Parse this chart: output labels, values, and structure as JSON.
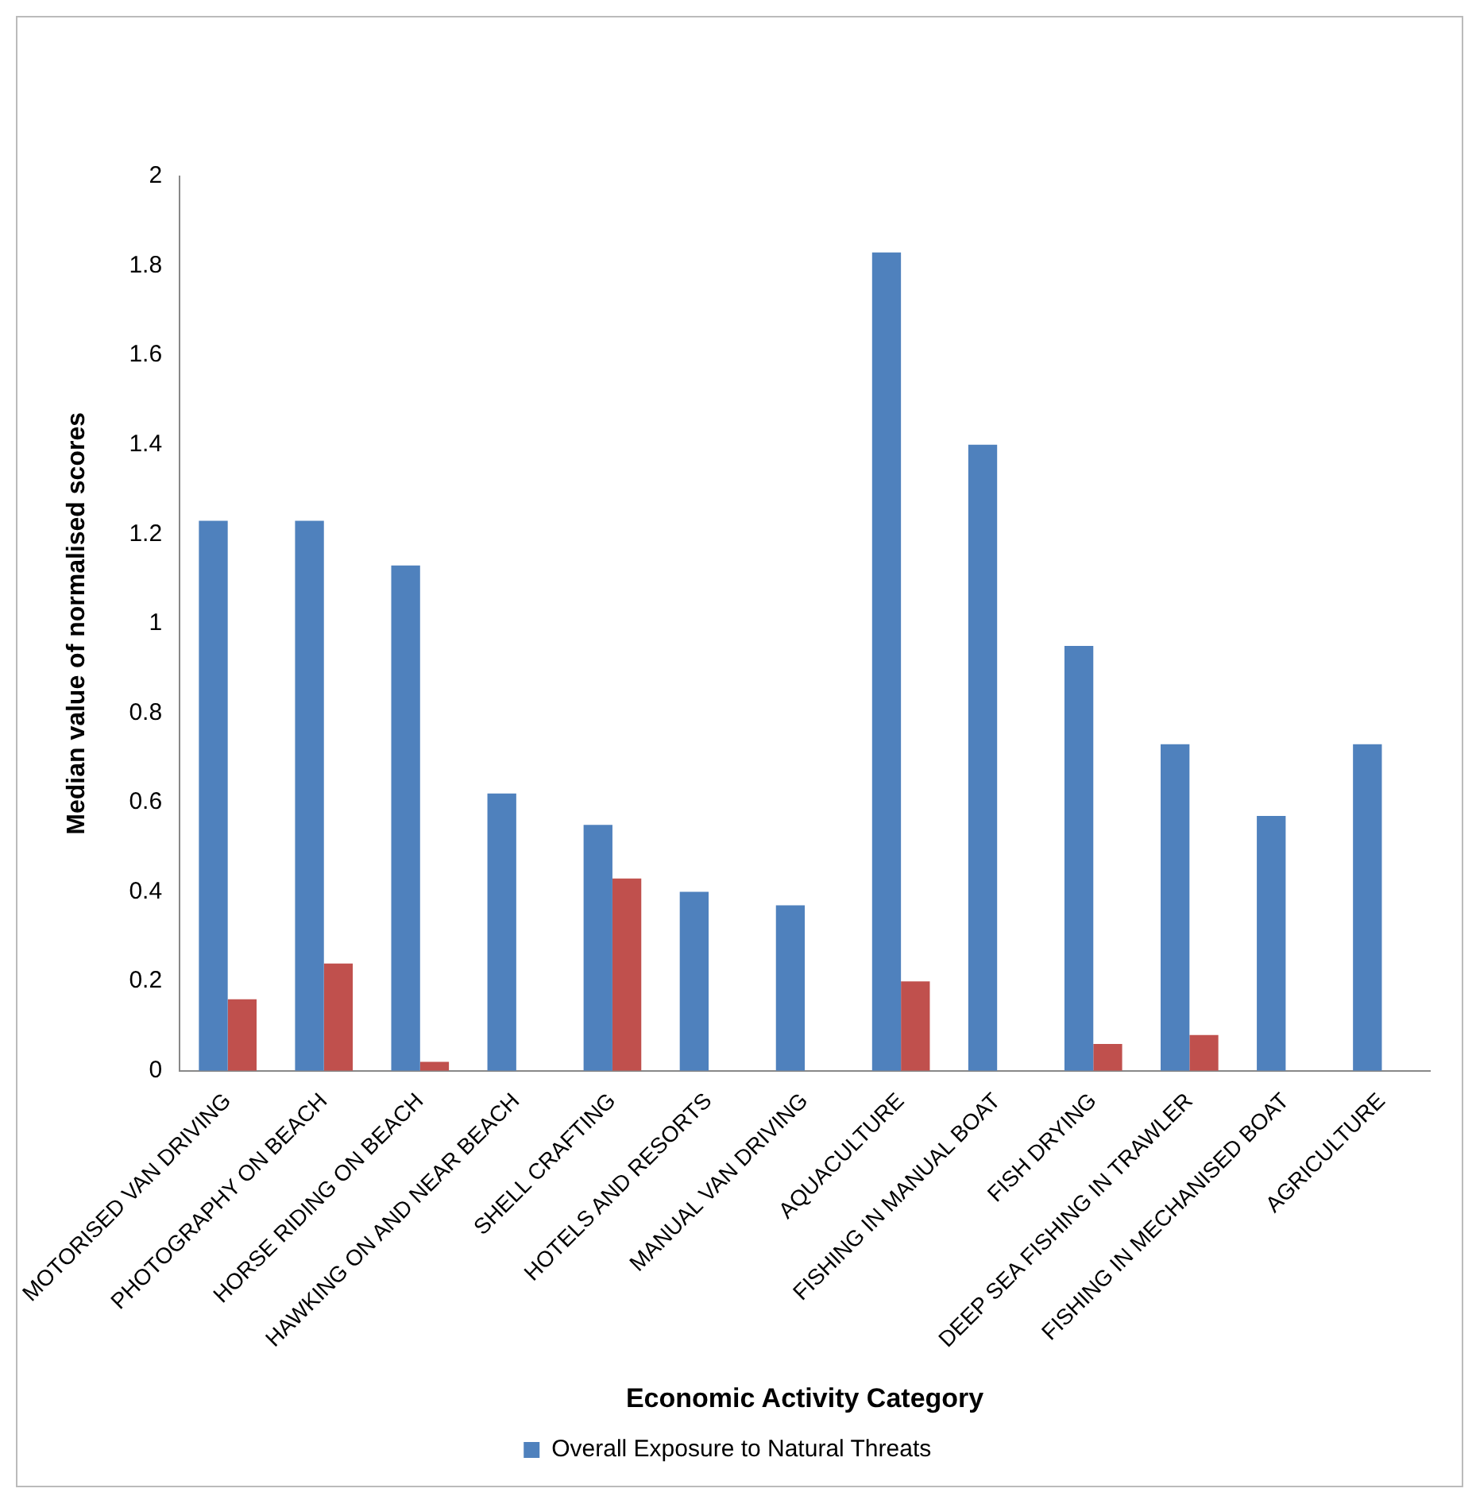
{
  "chart_data": {
    "type": "bar",
    "xlabel": "Economic Activity Category",
    "ylabel": "Median value of normalised scores",
    "categories": [
      "MOTORISED VAN DRIVING",
      "PHOTOGRAPHY ON BEACH",
      "HORSE RIDING ON BEACH",
      "HAWKING ON AND NEAR BEACH",
      "SHELL CRAFTING",
      "HOTELS AND RESORTS",
      "MANUAL VAN DRIVING",
      "AQUACULTURE",
      "FISHING IN MANUAL BOAT",
      "FISH DRYING",
      "DEEP SEA FISHING IN TRAWLER",
      "FISHING IN MECHANISED BOAT",
      "AGRICULTURE"
    ],
    "series": [
      {
        "name": "Overall Exposure to Natural Threats",
        "color": "#4f81bd",
        "values": [
          1.23,
          1.23,
          1.13,
          0.62,
          0.55,
          0.4,
          0.37,
          1.83,
          1.4,
          0.95,
          0.73,
          0.57,
          0.73
        ]
      },
      {
        "color": "#c0504d",
        "values": [
          0.16,
          0.24,
          0.02,
          null,
          0.43,
          null,
          null,
          0.2,
          null,
          0.06,
          0.08,
          null,
          null
        ]
      }
    ],
    "ylim": [
      0,
      2
    ],
    "yticks": [
      0,
      0.2,
      0.4,
      0.6,
      0.8,
      1,
      1.2,
      1.4,
      1.6,
      1.8,
      2
    ],
    "grid": false,
    "legend": "bottom"
  }
}
